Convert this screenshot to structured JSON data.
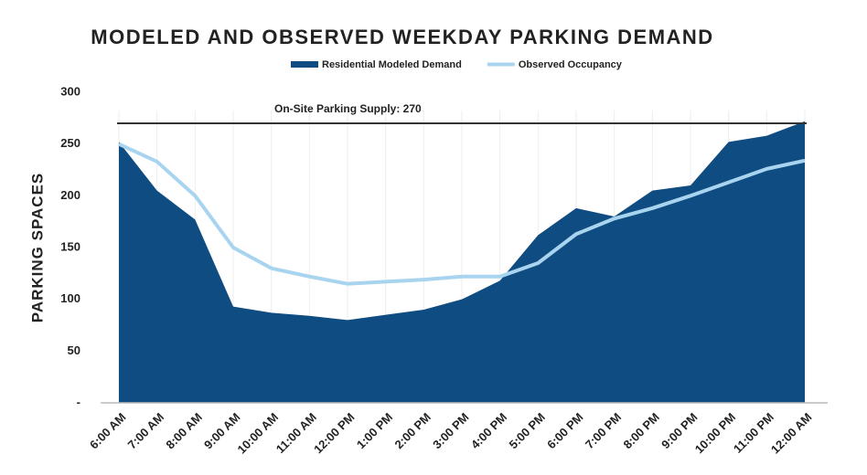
{
  "chart_data": {
    "type": "area_line",
    "title": "MODELED AND OBSERVED WEEKDAY PARKING DEMAND",
    "y_label": "PARKING SPACES",
    "categories": [
      "6:00 AM",
      "7:00 AM",
      "8:00 AM",
      "9:00 AM",
      "10:00 AM",
      "11:00 AM",
      "12:00 PM",
      "1:00 PM",
      "2:00 PM",
      "3:00 PM",
      "4:00 PM",
      "5:00 PM",
      "6:00 PM",
      "7:00 PM",
      "8:00 PM",
      "9:00 PM",
      "10:00 PM",
      "11:00 PM",
      "12:00 AM"
    ],
    "series": [
      {
        "name": "Residential Modeled Demand",
        "color": "#0f4c81",
        "kind": "area",
        "values": [
          252,
          205,
          177,
          93,
          87,
          84,
          80,
          85,
          90,
          100,
          118,
          162,
          188,
          180,
          205,
          210,
          252,
          258,
          272
        ]
      },
      {
        "name": "Observed Occupancy",
        "color": "#a9d4ef",
        "kind": "line",
        "values": [
          250,
          233,
          200,
          150,
          130,
          122,
          115,
          117,
          119,
          122,
          122,
          135,
          163,
          178,
          188,
          200,
          213,
          226,
          234
        ]
      }
    ],
    "supply": {
      "value": 270,
      "label": "On-Site Parking Supply: 270"
    },
    "ylim": [
      0,
      300
    ],
    "yticks": [
      {
        "value": 0,
        "label": "-"
      },
      50,
      100,
      150,
      200,
      250,
      300
    ]
  }
}
